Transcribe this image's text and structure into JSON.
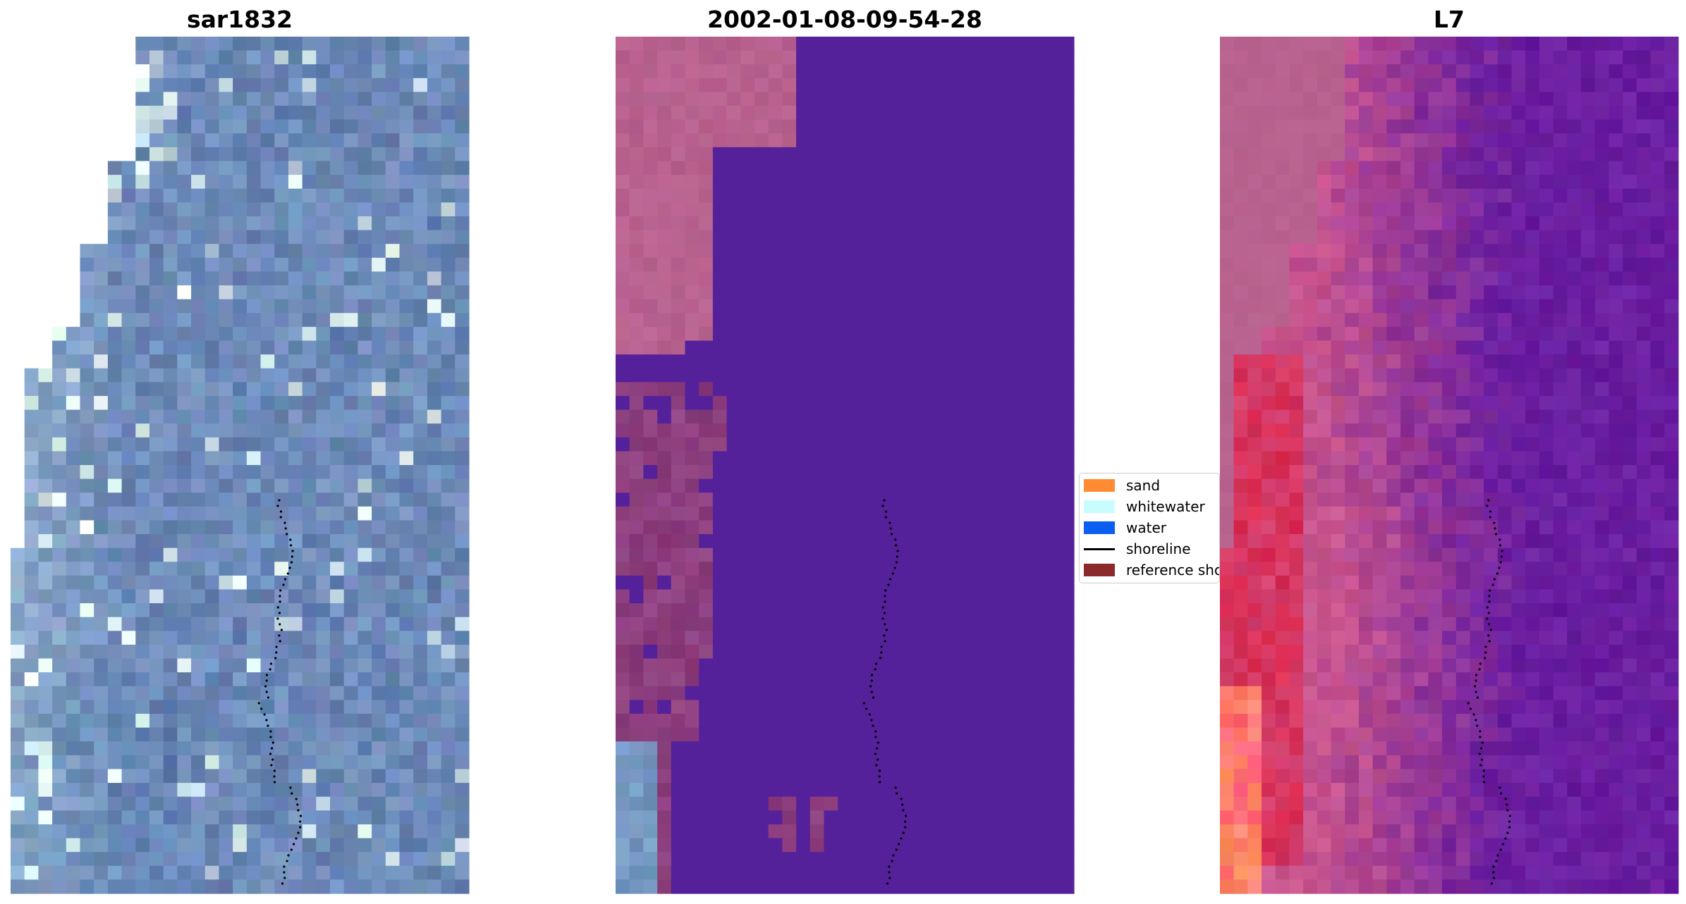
{
  "panels": [
    {
      "title": "sar1832"
    },
    {
      "title": "2002-01-08-09-54-28"
    },
    {
      "title": "L7"
    }
  ],
  "legend": {
    "items": [
      {
        "label": "sand",
        "color": "#ff8c33",
        "kind": "patch"
      },
      {
        "label": "whitewater",
        "color": "#c8fcff",
        "kind": "patch"
      },
      {
        "label": "water",
        "color": "#0a5ef0",
        "kind": "patch"
      },
      {
        "label": "shoreline",
        "color": "#000000",
        "kind": "line"
      },
      {
        "label": "reference shoreline",
        "color": "#8b2a2a",
        "kind": "patch"
      }
    ]
  },
  "colors": {
    "rgb_blue": "#6d8ab8",
    "class_water": "#55219a",
    "class_land": "#b8628f",
    "class_land_dark": "#8d3f7e",
    "ndwi_purple": "#6a1ea0",
    "ndwi_pink": "#c8558e",
    "ndwi_red": "#e02040"
  }
}
